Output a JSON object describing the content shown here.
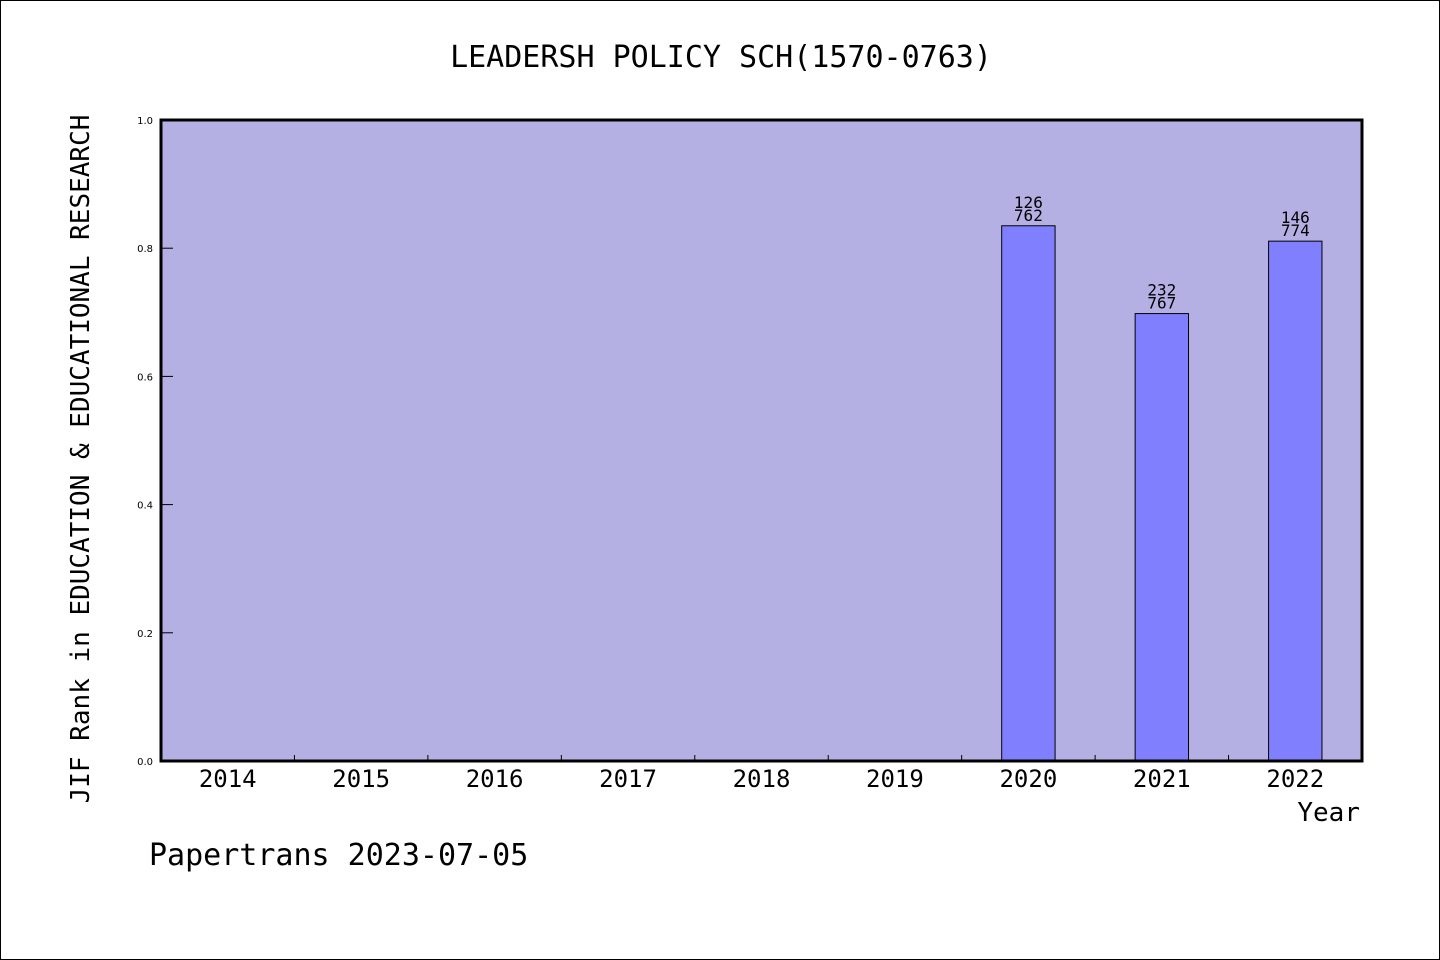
{
  "chart_data": {
    "type": "bar",
    "title": "LEADERSH POLICY SCH(1570-0763)",
    "xlabel": "Year",
    "ylabel": "JIF Rank in EDUCATION & EDUCATIONAL RESEARCH",
    "categories": [
      "2014",
      "2015",
      "2016",
      "2017",
      "2018",
      "2019",
      "2020",
      "2021",
      "2022"
    ],
    "values": [
      null,
      null,
      null,
      null,
      null,
      null,
      0.835,
      0.698,
      0.811
    ],
    "bar_labels": [
      null,
      null,
      null,
      null,
      null,
      null,
      {
        "rank": "126",
        "total": "762"
      },
      {
        "rank": "232",
        "total": "767"
      },
      {
        "rank": "146",
        "total": "774"
      }
    ],
    "ylim": [
      0,
      1.0
    ],
    "yticks": [
      "0.0",
      "0.2",
      "0.4",
      "0.6",
      "0.8",
      "1.0"
    ],
    "grid": false,
    "colors": {
      "plot_background": "#b5b0e3",
      "bar_fill": "#8080ff",
      "bar_stroke": "#000000"
    }
  },
  "footer": {
    "source_text": "Papertrans 2023-07-05"
  }
}
